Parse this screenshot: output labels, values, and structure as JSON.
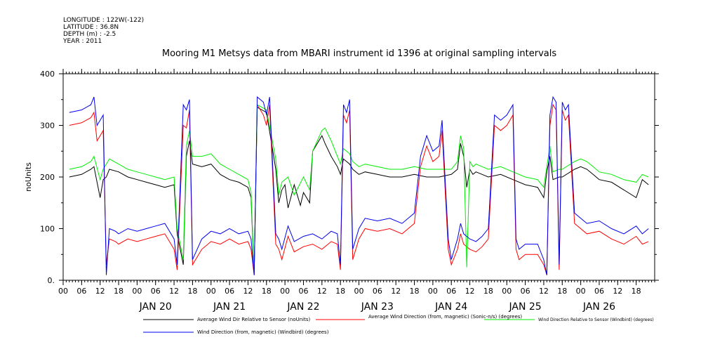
{
  "meta": {
    "longitude": "LONGITUDE : 122W(-122)",
    "latitude": "LATITUDE : 36.8N",
    "depth": "DEPTH (m) : -2.5",
    "year": "YEAR : 2011"
  },
  "chart_data": {
    "type": "line",
    "title": "Mooring M1 Metsys data from MBARI instrument id 1396 at original sampling intervals",
    "xlabel": "",
    "ylabel": "noUnits",
    "ylim": [
      0,
      400
    ],
    "yticks": [
      "0.",
      "100",
      "200",
      "300",
      "400"
    ],
    "x_hours_range": [
      -18,
      174
    ],
    "xtick_labels": [
      "00",
      "06",
      "12",
      "18",
      "00",
      "06",
      "12",
      "18",
      "00",
      "06",
      "12",
      "18",
      "00",
      "06",
      "12",
      "18",
      "00",
      "06",
      "12",
      "18",
      "00",
      "06",
      "12",
      "18",
      "00",
      "06",
      "12",
      "18",
      "00",
      "06",
      "12",
      "18"
    ],
    "day_labels": [
      "JAN 20",
      "JAN 21",
      "JAN 22",
      "JAN 23",
      "JAN 24",
      "JAN 25",
      "JAN 26"
    ],
    "grid": false,
    "legend_position": "bottom",
    "series": [
      {
        "name": "Average Wind Dir Relative to Sensor (noUnits)",
        "color": "#000000",
        "x": [
          -16,
          -12,
          -9,
          -8,
          -6,
          -5,
          -4,
          -3,
          0,
          3,
          6,
          9,
          12,
          15,
          18,
          19,
          21,
          22,
          23,
          24,
          27,
          30,
          33,
          36,
          39,
          42,
          43,
          44,
          45,
          48,
          51,
          52,
          53,
          54,
          55,
          57,
          59,
          60,
          62,
          63,
          66,
          67,
          69,
          71,
          72,
          73,
          75,
          76,
          78,
          80,
          84,
          88,
          92,
          96,
          100,
          104,
          108,
          110,
          111,
          112,
          113,
          114,
          115,
          116,
          118,
          120,
          124,
          128,
          132,
          136,
          138,
          139,
          140,
          141,
          143,
          144,
          148,
          150,
          152,
          154,
          156,
          160,
          164,
          168,
          170,
          172
        ],
        "y": [
          200,
          205,
          215,
          220,
          160,
          195,
          200,
          215,
          210,
          200,
          195,
          190,
          185,
          180,
          185,
          90,
          30,
          240,
          270,
          225,
          220,
          225,
          205,
          195,
          190,
          180,
          160,
          10,
          335,
          325,
          215,
          150,
          175,
          185,
          140,
          185,
          145,
          170,
          150,
          250,
          280,
          265,
          240,
          220,
          205,
          235,
          225,
          215,
          205,
          210,
          205,
          200,
          200,
          205,
          200,
          200,
          205,
          215,
          265,
          240,
          180,
          215,
          205,
          210,
          205,
          200,
          205,
          195,
          185,
          180,
          160,
          210,
          240,
          195,
          200,
          200,
          215,
          220,
          215,
          205,
          195,
          190,
          175,
          160,
          195,
          185
        ]
      },
      {
        "name": "Average Wind Direction (from, magnetic) (Sonic-n/s) (degrees)",
        "color": "#ff0000",
        "x": [
          -16,
          -12,
          -9,
          -8,
          -7,
          -6,
          -5,
          -4,
          -3,
          -1,
          0,
          3,
          6,
          9,
          12,
          15,
          18,
          19,
          21,
          22,
          23,
          24,
          27,
          30,
          33,
          36,
          39,
          42,
          43,
          44,
          45,
          47,
          48,
          49,
          51,
          52,
          53,
          55,
          57,
          60,
          63,
          66,
          69,
          71,
          72,
          73,
          74,
          75,
          76,
          78,
          80,
          84,
          88,
          92,
          96,
          98,
          100,
          102,
          104,
          105,
          107,
          108,
          110,
          111,
          112,
          114,
          116,
          118,
          120,
          122,
          124,
          126,
          128,
          129,
          130,
          132,
          136,
          138,
          139,
          140,
          141,
          142,
          143,
          144,
          145,
          146,
          148,
          152,
          156,
          160,
          164,
          168,
          170,
          172
        ],
        "y": [
          300,
          305,
          315,
          325,
          270,
          280,
          290,
          30,
          80,
          75,
          70,
          80,
          75,
          80,
          85,
          90,
          60,
          20,
          300,
          295,
          330,
          30,
          60,
          75,
          70,
          80,
          70,
          75,
          60,
          10,
          340,
          320,
          300,
          340,
          70,
          60,
          40,
          85,
          55,
          65,
          70,
          60,
          75,
          70,
          20,
          320,
          305,
          330,
          40,
          80,
          100,
          95,
          100,
          90,
          110,
          220,
          260,
          230,
          240,
          290,
          60,
          30,
          60,
          90,
          70,
          60,
          55,
          65,
          80,
          300,
          290,
          300,
          320,
          60,
          40,
          50,
          50,
          30,
          10,
          300,
          340,
          330,
          20,
          330,
          310,
          320,
          110,
          90,
          95,
          80,
          70,
          85,
          70,
          75
        ]
      },
      {
        "name": "Wind Direction Relative to Sensor (Windbird) (degrees)",
        "color": "#00ee00",
        "x": [
          -16,
          -12,
          -9,
          -8,
          -6,
          -5,
          -4,
          -3,
          0,
          3,
          6,
          9,
          12,
          15,
          18,
          19,
          21,
          22,
          23,
          24,
          27,
          30,
          33,
          36,
          39,
          42,
          43,
          44,
          45,
          48,
          51,
          52,
          53,
          55,
          57,
          60,
          62,
          63,
          66,
          67,
          69,
          71,
          72,
          73,
          75,
          76,
          78,
          80,
          84,
          88,
          92,
          96,
          100,
          104,
          108,
          110,
          111,
          112,
          113,
          114,
          115,
          116,
          118,
          120,
          124,
          128,
          132,
          136,
          138,
          139,
          140,
          141,
          143,
          144,
          148,
          150,
          152,
          154,
          156,
          160,
          164,
          168,
          170,
          172
        ],
        "y": [
          215,
          220,
          230,
          240,
          195,
          215,
          225,
          235,
          225,
          215,
          210,
          205,
          200,
          195,
          200,
          100,
          40,
          260,
          290,
          240,
          240,
          245,
          225,
          215,
          205,
          195,
          170,
          15,
          340,
          330,
          235,
          165,
          190,
          200,
          165,
          200,
          175,
          250,
          290,
          295,
          270,
          240,
          225,
          255,
          245,
          230,
          220,
          225,
          220,
          215,
          215,
          220,
          215,
          215,
          215,
          230,
          280,
          255,
          25,
          230,
          220,
          225,
          220,
          215,
          220,
          210,
          200,
          195,
          180,
          220,
          260,
          210,
          215,
          215,
          230,
          235,
          230,
          220,
          210,
          205,
          195,
          190,
          205,
          200
        ]
      },
      {
        "name": "Wind Direction (from, magnetic) (Windbird) (degrees)",
        "color": "#0000ee",
        "x": [
          -16,
          -12,
          -9,
          -8,
          -7,
          -6,
          -5,
          -4,
          -3,
          -1,
          0,
          3,
          6,
          9,
          12,
          15,
          18,
          19,
          21,
          22,
          23,
          24,
          27,
          30,
          33,
          36,
          39,
          42,
          43,
          44,
          45,
          47,
          48,
          49,
          51,
          52,
          53,
          55,
          57,
          60,
          63,
          66,
          69,
          71,
          72,
          73,
          74,
          75,
          76,
          78,
          80,
          84,
          88,
          92,
          96,
          98,
          100,
          102,
          104,
          105,
          107,
          108,
          110,
          111,
          112,
          114,
          116,
          118,
          120,
          122,
          124,
          126,
          128,
          129,
          130,
          132,
          136,
          138,
          139,
          140,
          141,
          142,
          143,
          144,
          145,
          146,
          148,
          152,
          156,
          160,
          164,
          168,
          170,
          172
        ],
        "y": [
          325,
          330,
          340,
          355,
          300,
          310,
          320,
          10,
          100,
          95,
          90,
          100,
          95,
          100,
          105,
          110,
          80,
          30,
          340,
          330,
          350,
          40,
          80,
          95,
          90,
          100,
          90,
          95,
          80,
          10,
          355,
          345,
          320,
          355,
          90,
          80,
          60,
          105,
          75,
          85,
          90,
          80,
          95,
          90,
          30,
          340,
          325,
          350,
          60,
          100,
          120,
          115,
          120,
          110,
          130,
          240,
          280,
          250,
          260,
          310,
          80,
          40,
          80,
          110,
          90,
          80,
          75,
          85,
          100,
          320,
          310,
          320,
          340,
          80,
          60,
          70,
          70,
          40,
          10,
          320,
          355,
          345,
          30,
          345,
          330,
          340,
          130,
          110,
          115,
          100,
          90,
          105,
          90,
          100
        ]
      }
    ]
  }
}
